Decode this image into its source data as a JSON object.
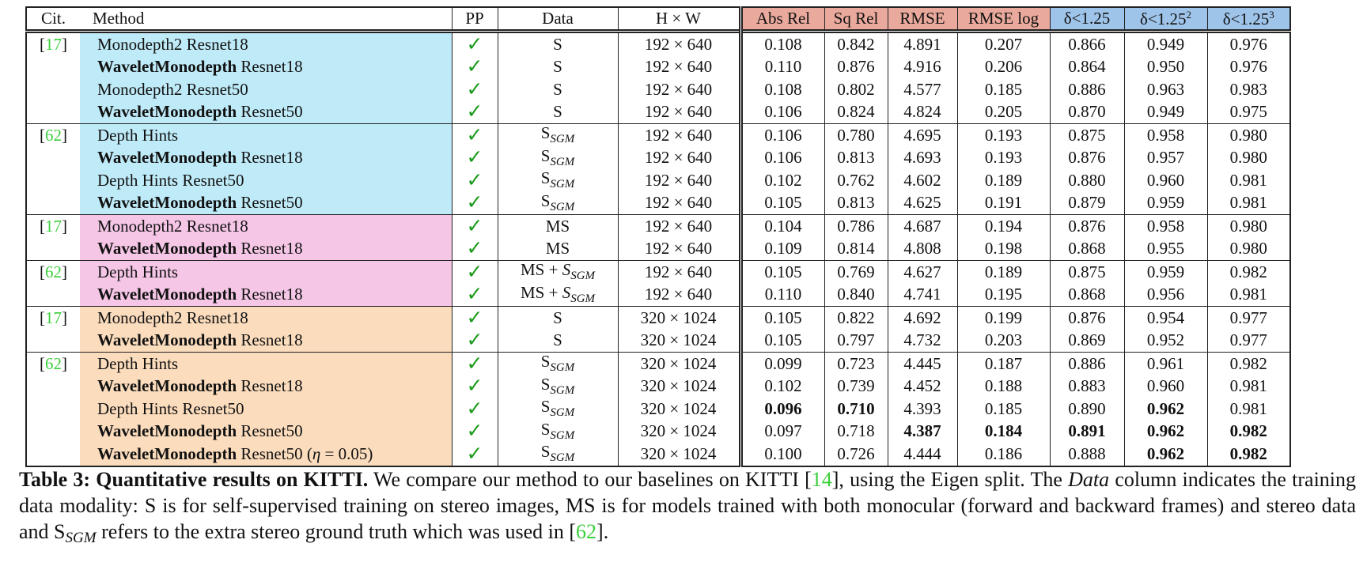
{
  "headers": {
    "cit": "Cit.",
    "method": "Method",
    "pp": "PP",
    "data": "Data",
    "hw": "H × W",
    "abs_rel": "Abs Rel",
    "sq_rel": "Sq Rel",
    "rmse": "RMSE",
    "rmse_log": "RMSE log",
    "d1": "δ<1.25",
    "d2_base": "δ<1.25",
    "d2_sup": "2",
    "d3_base": "δ<1.25",
    "d3_sup": "3"
  },
  "colors": {
    "error_header": "#e9a99c",
    "accuracy_header": "#9fc4ea",
    "blue_group": "#bfeaf8",
    "pink_group": "#f5c6e6",
    "orange_group": "#fbdcbd",
    "citation": "#3ccf3c",
    "check": "#1a9a1a"
  },
  "check_mark": "✓",
  "rows": [
    {
      "cit": "17",
      "bold": "",
      "name": "Monodepth2 Resnet18",
      "data": "S",
      "hw": "192 × 640",
      "abs_rel": "0.108",
      "sq_rel": "0.842",
      "rmse": "4.891",
      "rmse_log": "0.207",
      "d1": "0.866",
      "d2": "0.949",
      "d3": "0.976"
    },
    {
      "cit": "",
      "bold": "WaveletMonodepth",
      "name": " Resnet18",
      "data": "S",
      "hw": "192 × 640",
      "abs_rel": "0.110",
      "sq_rel": "0.876",
      "rmse": "4.916",
      "rmse_log": "0.206",
      "d1": "0.864",
      "d2": "0.950",
      "d3": "0.976"
    },
    {
      "cit": "",
      "bold": "",
      "name": "Monodepth2 Resnet50",
      "data": "S",
      "hw": "192 × 640",
      "abs_rel": "0.108",
      "sq_rel": "0.802",
      "rmse": "4.577",
      "rmse_log": "0.185",
      "d1": "0.886",
      "d2": "0.963",
      "d3": "0.983"
    },
    {
      "cit": "",
      "bold": "WaveletMonodepth",
      "name": " Resnet50",
      "data": "S",
      "hw": "192 × 640",
      "abs_rel": "0.106",
      "sq_rel": "0.824",
      "rmse": "4.824",
      "rmse_log": "0.205",
      "d1": "0.870",
      "d2": "0.949",
      "d3": "0.975"
    },
    {
      "cit": "62",
      "bold": "",
      "name": "Depth Hints",
      "data": "S",
      "data_sub": "SGM",
      "hw": "192 × 640",
      "abs_rel": "0.106",
      "sq_rel": "0.780",
      "rmse": "4.695",
      "rmse_log": "0.193",
      "d1": "0.875",
      "d2": "0.958",
      "d3": "0.980"
    },
    {
      "cit": "",
      "bold": "WaveletMonodepth",
      "name": " Resnet18",
      "data": "S",
      "data_sub": "SGM",
      "hw": "192 × 640",
      "abs_rel": "0.106",
      "sq_rel": "0.813",
      "rmse": "4.693",
      "rmse_log": "0.193",
      "d1": "0.876",
      "d2": "0.957",
      "d3": "0.980"
    },
    {
      "cit": "",
      "bold": "",
      "name": "Depth Hints Resnet50",
      "data": "S",
      "data_sub": "SGM",
      "hw": "192 × 640",
      "abs_rel": "0.102",
      "sq_rel": "0.762",
      "rmse": "4.602",
      "rmse_log": "0.189",
      "d1": "0.880",
      "d2": "0.960",
      "d3": "0.981"
    },
    {
      "cit": "",
      "bold": "WaveletMonodepth",
      "name": " Resnet50",
      "data": "S",
      "data_sub": "SGM",
      "hw": "192 × 640",
      "abs_rel": "0.105",
      "sq_rel": "0.813",
      "rmse": "4.625",
      "rmse_log": "0.191",
      "d1": "0.879",
      "d2": "0.959",
      "d3": "0.981"
    },
    {
      "cit": "17",
      "bold": "",
      "name": "Monodepth2 Resnet18",
      "data": "MS",
      "hw": "192 × 640",
      "abs_rel": "0.104",
      "sq_rel": "0.786",
      "rmse": "4.687",
      "rmse_log": "0.194",
      "d1": "0.876",
      "d2": "0.958",
      "d3": "0.980"
    },
    {
      "cit": "",
      "bold": "WaveletMonodepth",
      "name": " Resnet18",
      "data": "MS",
      "hw": "192 × 640",
      "abs_rel": "0.109",
      "sq_rel": "0.814",
      "rmse": "4.808",
      "rmse_log": "0.198",
      "d1": "0.868",
      "d2": "0.955",
      "d3": "0.980"
    },
    {
      "cit": "62",
      "bold": "",
      "name": "Depth Hints",
      "data": "MS + ",
      "data_it": "S",
      "data_sub": "SGM",
      "hw": "192 × 640",
      "abs_rel": "0.105",
      "sq_rel": "0.769",
      "rmse": "4.627",
      "rmse_log": "0.189",
      "d1": "0.875",
      "d2": "0.959",
      "d3": "0.982"
    },
    {
      "cit": "",
      "bold": "WaveletMonodepth",
      "name": " Resnet18",
      "data": "MS + ",
      "data_it": "S",
      "data_sub": "SGM",
      "hw": "192 × 640",
      "abs_rel": "0.110",
      "sq_rel": "0.840",
      "rmse": "4.741",
      "rmse_log": "0.195",
      "d1": "0.868",
      "d2": "0.956",
      "d3": "0.981"
    },
    {
      "cit": "17",
      "bold": "",
      "name": "Monodepth2 Resnet18",
      "data": "S",
      "hw": "320 × 1024",
      "abs_rel": "0.105",
      "sq_rel": "0.822",
      "rmse": "4.692",
      "rmse_log": "0.199",
      "d1": "0.876",
      "d2": "0.954",
      "d3": "0.977"
    },
    {
      "cit": "",
      "bold": "WaveletMonodepth",
      "name": " Resnet18",
      "data": "S",
      "hw": "320 × 1024",
      "abs_rel": "0.105",
      "sq_rel": "0.797",
      "rmse": "4.732",
      "rmse_log": "0.203",
      "d1": "0.869",
      "d2": "0.952",
      "d3": "0.977"
    },
    {
      "cit": "62",
      "bold": "",
      "name": "Depth Hints",
      "data": "S",
      "data_sub": "SGM",
      "hw": "320 × 1024",
      "abs_rel": "0.099",
      "sq_rel": "0.723",
      "rmse": "4.445",
      "rmse_log": "0.187",
      "d1": "0.886",
      "d2": "0.961",
      "d3": "0.982"
    },
    {
      "cit": "",
      "bold": "WaveletMonodepth",
      "name": " Resnet18",
      "data": "S",
      "data_sub": "SGM",
      "hw": "320 × 1024",
      "abs_rel": "0.102",
      "sq_rel": "0.739",
      "rmse": "4.452",
      "rmse_log": "0.188",
      "d1": "0.883",
      "d2": "0.960",
      "d3": "0.981"
    },
    {
      "cit": "",
      "bold": "",
      "name": "Depth Hints Resnet50",
      "data": "S",
      "data_sub": "SGM",
      "hw": "320 × 1024",
      "abs_rel": "0.096",
      "sq_rel": "0.710",
      "rmse": "4.393",
      "rmse_log": "0.185",
      "d1": "0.890",
      "d2": "0.962",
      "d3": "0.981",
      "bold_cells": [
        "abs_rel",
        "sq_rel",
        "d2"
      ]
    },
    {
      "cit": "",
      "bold": "WaveletMonodepth",
      "name": " Resnet50",
      "data": "S",
      "data_sub": "SGM",
      "hw": "320 × 1024",
      "abs_rel": "0.097",
      "sq_rel": "0.718",
      "rmse": "4.387",
      "rmse_log": "0.184",
      "d1": "0.891",
      "d2": "0.962",
      "d3": "0.982",
      "bold_cells": [
        "rmse",
        "rmse_log",
        "d1",
        "d2",
        "d3"
      ]
    },
    {
      "cit": "",
      "bold": "WaveletMonodepth",
      "name": " Resnet50 (",
      "name_it": "η",
      "name_tail": " = 0.05)",
      "data": "S",
      "data_sub": "SGM",
      "hw": "320 × 1024",
      "abs_rel": "0.100",
      "sq_rel": "0.726",
      "rmse": "4.444",
      "rmse_log": "0.186",
      "d1": "0.888",
      "d2": "0.962",
      "d3": "0.982",
      "bold_cells": [
        "d2",
        "d3"
      ]
    }
  ],
  "groups": [
    {
      "start": 0,
      "end": 7,
      "color": "blue"
    },
    {
      "start": 8,
      "end": 11,
      "color": "pink"
    },
    {
      "start": 12,
      "end": 18,
      "color": "orange"
    }
  ],
  "group_starts": [
    0,
    4,
    8,
    10,
    12,
    14
  ],
  "caption": {
    "label": "Table 3:",
    "title": "Quantitative results on KITTI.",
    "t1": " We compare our method to our baselines on KITTI [",
    "ref1": "14",
    "t2": "], using the Eigen split. The ",
    "t3_it": "Data",
    "t4": " column indicates the training data modality: S is for self-supervised training on stereo images, MS is for models trained with both monocular (forward and backward frames) and stereo data and S",
    "t5_sub": "SGM",
    "t6": " refers to the extra stereo ground truth which was used in  [",
    "ref2": "62",
    "t7": "]."
  }
}
